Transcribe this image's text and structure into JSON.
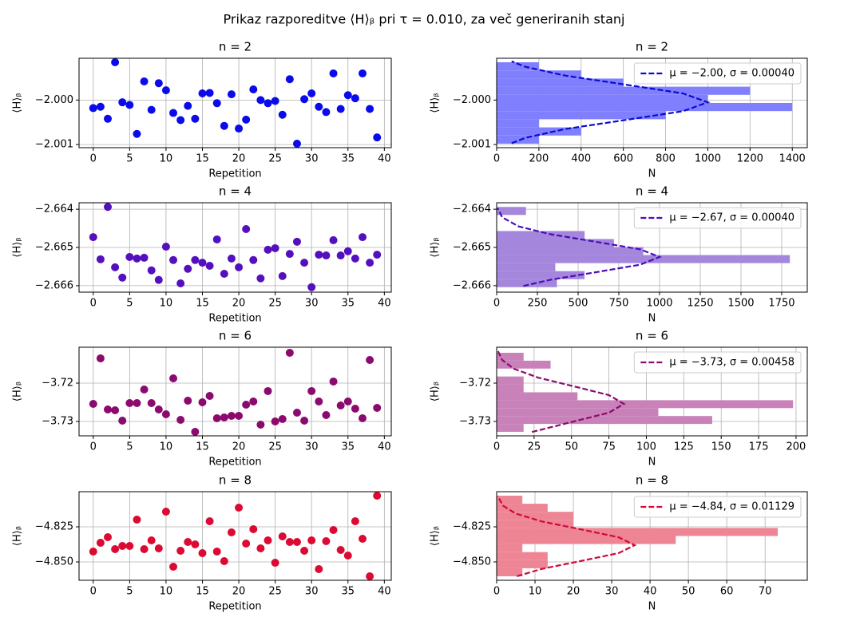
{
  "title": "Prikaz razporeditve ⟨H⟩ᵦ pri τ = 0.010, za več generiranih stanj",
  "chart_data": [
    {
      "type": "scatter",
      "title": "n = 2",
      "xlabel": "Repetition",
      "ylabel": "⟨H⟩ᵦ",
      "color": "#0a0aeb",
      "grid": true,
      "x": [
        0,
        1,
        2,
        3,
        4,
        5,
        6,
        7,
        8,
        9,
        10,
        11,
        12,
        13,
        14,
        15,
        16,
        17,
        18,
        19,
        20,
        21,
        22,
        23,
        24,
        25,
        26,
        27,
        28,
        29,
        30,
        31,
        32,
        33,
        34,
        35,
        36,
        37,
        38,
        39
      ],
      "values": [
        -2.00018,
        -2.00015,
        -2.00042,
        -1.99915,
        -2.00005,
        -2.00011,
        -2.00076,
        -1.99958,
        -2.00022,
        -1.99962,
        -1.99978,
        -2.00029,
        -2.00045,
        -2.00013,
        -2.00042,
        -1.99985,
        -1.99984,
        -2.00007,
        -2.00058,
        -1.99987,
        -2.00064,
        -2.00044,
        -1.99976,
        -2.0,
        -2.00007,
        -2.00002,
        -2.00033,
        -1.99953,
        -2.00098,
        -1.99998,
        -1.99985,
        -2.00015,
        -2.00027,
        -1.9994,
        -2.0002,
        -1.99989,
        -1.99996,
        -1.9994,
        -2.0002,
        -2.00084
      ],
      "xlim": [
        -1.95,
        40.95
      ],
      "xticks": [
        0,
        5,
        10,
        15,
        20,
        25,
        30,
        35,
        40
      ],
      "ylim": [
        -2.00107,
        -1.99906
      ],
      "yticks": [
        {
          "value": -2.001,
          "label": "−2.001"
        },
        {
          "value": -2.0,
          "label": "−2.000"
        }
      ]
    },
    {
      "type": "histogram",
      "orientation": "horizontal",
      "title": "n = 2",
      "xlabel": "N",
      "ylabel": "⟨H⟩ᵦ",
      "color": "#8080ff",
      "grid": true,
      "legend": "upper right",
      "bins": [
        -2.00098,
        -2.000797,
        -2.000614,
        -2.000431,
        -2.000248,
        -2.000065,
        -1.999882,
        -1.999699,
        -1.999516,
        -1.999333,
        -1.99915
      ],
      "values": [
        200,
        400,
        200,
        800,
        1400,
        1000,
        1200,
        600,
        400,
        200
      ],
      "fit": {
        "name": "μ = −2.00, σ = 0.00040",
        "color": "#0a0ad2",
        "y": [
          -2.00097,
          -2.00085,
          -2.00065,
          -2.00045,
          -2.00025,
          -2.00005,
          -1.99985,
          -1.99965,
          -1.99945,
          -1.99925,
          -1.99913
        ],
        "values": [
          71,
          135,
          325,
          607,
          882,
          1000,
          882,
          607,
          325,
          135,
          71
        ]
      },
      "xlim": [
        0,
        1471
      ],
      "xticks": [
        0,
        200,
        400,
        600,
        800,
        1000,
        1200,
        1400
      ],
      "ylim": [
        -2.00107,
        -1.99906
      ],
      "yticks": [
        {
          "value": -2.001,
          "label": "−2.001"
        },
        {
          "value": -2.0,
          "label": "−2.000"
        }
      ]
    },
    {
      "type": "scatter",
      "title": "n = 4",
      "xlabel": "Repetition",
      "ylabel": "⟨H⟩ᵦ",
      "color": "#5410be",
      "grid": true,
      "x": [
        0,
        1,
        2,
        3,
        4,
        5,
        6,
        7,
        8,
        9,
        10,
        11,
        12,
        13,
        14,
        15,
        16,
        17,
        18,
        19,
        20,
        21,
        22,
        23,
        24,
        25,
        26,
        27,
        28,
        29,
        30,
        31,
        32,
        33,
        34,
        35,
        36,
        37,
        38,
        39
      ],
      "values": [
        -2.66473,
        -2.66531,
        -2.66394,
        -2.66552,
        -2.66579,
        -2.66525,
        -2.66529,
        -2.66527,
        -2.6656,
        -2.66585,
        -2.66498,
        -2.66533,
        -2.66594,
        -2.66556,
        -2.66533,
        -2.6654,
        -2.66548,
        -2.66479,
        -2.66569,
        -2.66529,
        -2.66552,
        -2.66452,
        -2.66533,
        -2.66581,
        -2.66506,
        -2.66502,
        -2.66575,
        -2.66517,
        -2.66485,
        -2.6654,
        -2.66604,
        -2.66519,
        -2.66521,
        -2.66481,
        -2.66521,
        -2.6651,
        -2.66529,
        -2.66473,
        -2.6654,
        -2.66519
      ],
      "xlim": [
        -1.95,
        40.95
      ],
      "xticks": [
        0,
        5,
        10,
        15,
        20,
        25,
        30,
        35,
        40
      ],
      "ylim": [
        -2.66617,
        -2.66383
      ],
      "yticks": [
        {
          "value": -2.666,
          "label": "−2.666"
        },
        {
          "value": -2.665,
          "label": "−2.665"
        },
        {
          "value": -2.664,
          "label": "−2.664"
        }
      ]
    },
    {
      "type": "histogram",
      "orientation": "horizontal",
      "title": "n = 4",
      "xlabel": "N",
      "ylabel": "⟨H⟩ᵦ",
      "color": "#a487dd",
      "grid": true,
      "legend": "upper right",
      "bins": [
        -2.66604,
        -2.66583,
        -2.66562,
        -2.66541,
        -2.6652,
        -2.66499,
        -2.66478,
        -2.66457,
        -2.66436,
        -2.66415,
        -2.66394
      ],
      "values": [
        370,
        540,
        360,
        1800,
        900,
        720,
        540,
        0,
        0,
        180
      ],
      "fit": {
        "name": "μ = −2.67, σ = 0.00040",
        "color": "#4a0cb8",
        "y": [
          -2.66601,
          -2.66585,
          -2.66565,
          -2.66545,
          -2.66525,
          -2.66505,
          -2.66485,
          -2.66465,
          -2.66445,
          -2.66421,
          -2.66397
        ],
        "values": [
          164,
          325,
          607,
          882,
          1000,
          882,
          607,
          325,
          135,
          34,
          6
        ]
      },
      "xlim": [
        0,
        1907
      ],
      "xticks": [
        0,
        250,
        500,
        750,
        1000,
        1250,
        1500,
        1750
      ],
      "ylim": [
        -2.66617,
        -2.66383
      ],
      "yticks": [
        {
          "value": -2.666,
          "label": "−2.666"
        },
        {
          "value": -2.665,
          "label": "−2.665"
        },
        {
          "value": -2.664,
          "label": "−2.664"
        }
      ]
    },
    {
      "type": "scatter",
      "title": "n = 6",
      "xlabel": "Repetition",
      "ylabel": "⟨H⟩ᵦ",
      "color": "#8c0a6e",
      "grid": true,
      "x": [
        0,
        1,
        2,
        3,
        4,
        5,
        6,
        7,
        8,
        9,
        10,
        11,
        12,
        13,
        14,
        15,
        16,
        17,
        18,
        19,
        20,
        21,
        22,
        23,
        24,
        25,
        26,
        27,
        28,
        29,
        30,
        31,
        32,
        33,
        34,
        35,
        36,
        37,
        38,
        39
      ],
      "values": [
        -3.72542,
        -3.71354,
        -3.72688,
        -3.72708,
        -3.72979,
        -3.72521,
        -3.72521,
        -3.72167,
        -3.72521,
        -3.72688,
        -3.72813,
        -3.71875,
        -3.72958,
        -3.72458,
        -3.73271,
        -3.725,
        -3.72333,
        -3.72917,
        -3.72896,
        -3.72854,
        -3.72854,
        -3.72563,
        -3.72479,
        -3.73083,
        -3.72208,
        -3.73,
        -3.72938,
        -3.71208,
        -3.72771,
        -3.72979,
        -3.72208,
        -3.72479,
        -3.72833,
        -3.71958,
        -3.72583,
        -3.72479,
        -3.72667,
        -3.72917,
        -3.71396,
        -3.72646
      ],
      "xlim": [
        -1.95,
        40.95
      ],
      "xticks": [
        0,
        5,
        10,
        15,
        20,
        25,
        30,
        35,
        40
      ],
      "ylim": [
        -3.73375,
        -3.71063
      ],
      "yticks": [
        {
          "value": -3.73,
          "label": "−3.73"
        },
        {
          "value": -3.72,
          "label": "−3.72"
        }
      ]
    },
    {
      "type": "histogram",
      "orientation": "horizontal",
      "title": "n = 6",
      "xlabel": "N",
      "ylabel": "⟨H⟩ᵦ",
      "color": "#c882b9",
      "grid": true,
      "legend": "upper right",
      "bins": [
        -3.73271,
        -3.730647,
        -3.728584,
        -3.726521,
        -3.724458,
        -3.722395,
        -3.720332,
        -3.718269,
        -3.716206,
        -3.714143,
        -3.71208
      ],
      "values": [
        18,
        144,
        108,
        198,
        54,
        18,
        18,
        0,
        36,
        18
      ],
      "fit": {
        "name": "μ = −3.73, σ = 0.00458",
        "color": "#8c0a6e",
        "y": [
          -3.73275,
          -3.73,
          -3.72771,
          -3.72542,
          -3.72313,
          -3.72084,
          -3.71855,
          -3.71626,
          -3.71397,
          -3.71168
        ],
        "values": [
          23.6,
          51.6,
          75,
          85,
          75,
          51.6,
          27.6,
          11.5,
          3.7,
          0.9
        ]
      },
      "xlim": [
        0,
        207.5
      ],
      "xticks": [
        0,
        25,
        50,
        75,
        100,
        125,
        150,
        175,
        200
      ],
      "ylim": [
        -3.73375,
        -3.71063
      ],
      "yticks": [
        {
          "value": -3.73,
          "label": "−3.73"
        },
        {
          "value": -3.72,
          "label": "−3.72"
        }
      ]
    },
    {
      "type": "scatter",
      "title": "n = 8",
      "xlabel": "Repetition",
      "ylabel": "⟨H⟩ᵦ",
      "color": "#dc0a32",
      "grid": true,
      "x": [
        0,
        1,
        2,
        3,
        4,
        5,
        6,
        7,
        8,
        9,
        10,
        11,
        12,
        13,
        14,
        15,
        16,
        17,
        18,
        19,
        20,
        21,
        22,
        23,
        24,
        25,
        26,
        27,
        28,
        29,
        30,
        31,
        32,
        33,
        34,
        35,
        36,
        37,
        38,
        39
      ],
      "values": [
        -4.84261,
        -4.83636,
        -4.83239,
        -4.84091,
        -4.83864,
        -4.83864,
        -4.81989,
        -4.84091,
        -4.83466,
        -4.84034,
        -4.8142,
        -4.85341,
        -4.84205,
        -4.8358,
        -4.8375,
        -4.84375,
        -4.82102,
        -4.84261,
        -4.84943,
        -4.82898,
        -4.81136,
        -4.83693,
        -4.8267,
        -4.84034,
        -4.83466,
        -4.85057,
        -4.83182,
        -4.8358,
        -4.8358,
        -4.84205,
        -4.83466,
        -4.85511,
        -4.83523,
        -4.82727,
        -4.84148,
        -4.84545,
        -4.82102,
        -4.83352,
        -4.86023,
        -4.80284
      ],
      "xlim": [
        -1.95,
        40.95
      ],
      "xticks": [
        0,
        5,
        10,
        15,
        20,
        25,
        30,
        35,
        40
      ],
      "ylim": [
        -4.86307,
        -4.8
      ],
      "yticks": [
        {
          "value": -4.85,
          "label": "−4.850"
        },
        {
          "value": -4.825,
          "label": "−4.825"
        }
      ]
    },
    {
      "type": "histogram",
      "orientation": "horizontal",
      "title": "n = 8",
      "xlabel": "N",
      "ylabel": "⟨H⟩ᵦ",
      "color": "#ee8595",
      "grid": true,
      "legend": "upper right",
      "bins": [
        -4.86023,
        -4.854491,
        -4.848752,
        -4.843013,
        -4.837274,
        -4.831535,
        -4.825796,
        -4.820057,
        -4.814318,
        -4.808579,
        -4.80284
      ],
      "values": [
        6.7,
        13.3,
        13.3,
        6.7,
        46.7,
        73.3,
        20,
        20,
        13.3,
        6.7
      ],
      "fit": {
        "name": "μ = −4.84, σ = 0.01129",
        "color": "#d2083a",
        "y": [
          -4.8602,
          -4.85501,
          -4.84936,
          -4.84372,
          -4.83807,
          -4.83243,
          -4.82678,
          -4.82114,
          -4.81549,
          -4.80985,
          -4.80307
        ],
        "values": [
          5.3,
          11.7,
          21.9,
          31.8,
          36,
          31.8,
          21.9,
          11.7,
          4.9,
          1.6,
          0.3
        ]
      },
      "xlim": [
        0,
        81
      ],
      "xticks": [
        0,
        10,
        20,
        30,
        40,
        50,
        60,
        70
      ],
      "ylim": [
        -4.86307,
        -4.8
      ],
      "yticks": [
        {
          "value": -4.85,
          "label": "−4.850"
        },
        {
          "value": -4.825,
          "label": "−4.825"
        }
      ]
    }
  ]
}
